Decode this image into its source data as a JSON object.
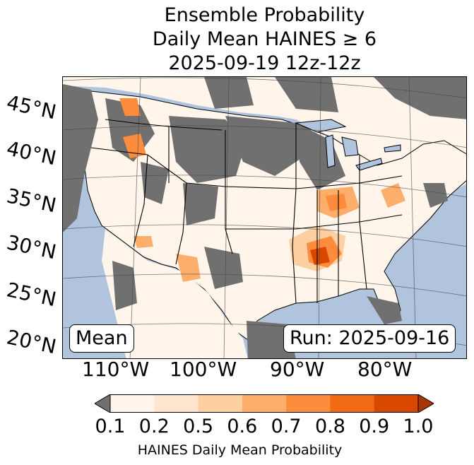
{
  "title": {
    "line1": "Ensemble Probability",
    "line2": "Daily Mean HAINES ≥ 6",
    "line3": "2025-09-19 12z-12z"
  },
  "map": {
    "lat_labels": [
      "45°N",
      "40°N",
      "35°N",
      "30°N",
      "25°N",
      "20°N"
    ],
    "lon_labels": [
      "110°W",
      "100°W",
      "90°W",
      "80°W"
    ],
    "stat_label": "Mean",
    "run_label": "Run: 2025-09-16",
    "colors": {
      "ocean": "#b0c4de",
      "land_below": "#707070",
      "land_base": "#fff5eb"
    }
  },
  "colorbar": {
    "ticks": [
      "0.1",
      "0.2",
      "0.5",
      "0.6",
      "0.7",
      "0.8",
      "0.9",
      "1.0"
    ],
    "colors": [
      "#fff5eb",
      "#fee6ce",
      "#fdd0a2",
      "#fdae6b",
      "#fd8d3c",
      "#f16913",
      "#d94801",
      "#a63603"
    ],
    "under_color": "#707070",
    "label": "HAINES Daily Mean Probability"
  }
}
